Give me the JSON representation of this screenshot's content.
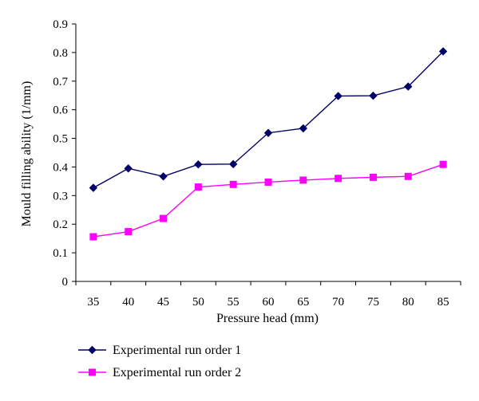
{
  "chart_data": {
    "type": "line",
    "title": "",
    "xlabel": "Pressure head (mm)",
    "ylabel": "Mould filling ability (1/mm)",
    "categories": [
      "35",
      "40",
      "45",
      "50",
      "55",
      "60",
      "65",
      "70",
      "75",
      "80",
      "85"
    ],
    "ylim": [
      0,
      0.9
    ],
    "yticks": [
      "0",
      "0.1",
      "0.2",
      "0.3",
      "0.4",
      "0.5",
      "0.6",
      "0.7",
      "0.8",
      "0.9"
    ],
    "grid": false,
    "legend_position": "bottom",
    "series": [
      {
        "name": "Experimental run order 1",
        "color": "#000066",
        "marker": "diamond",
        "values": [
          0.327,
          0.395,
          0.367,
          0.409,
          0.41,
          0.519,
          0.535,
          0.648,
          0.649,
          0.681,
          0.804
        ]
      },
      {
        "name": "Experimental run order 2",
        "color": "#ff00ff",
        "marker": "square",
        "values": [
          0.156,
          0.174,
          0.22,
          0.33,
          0.339,
          0.347,
          0.354,
          0.36,
          0.364,
          0.367,
          0.409
        ]
      }
    ]
  }
}
